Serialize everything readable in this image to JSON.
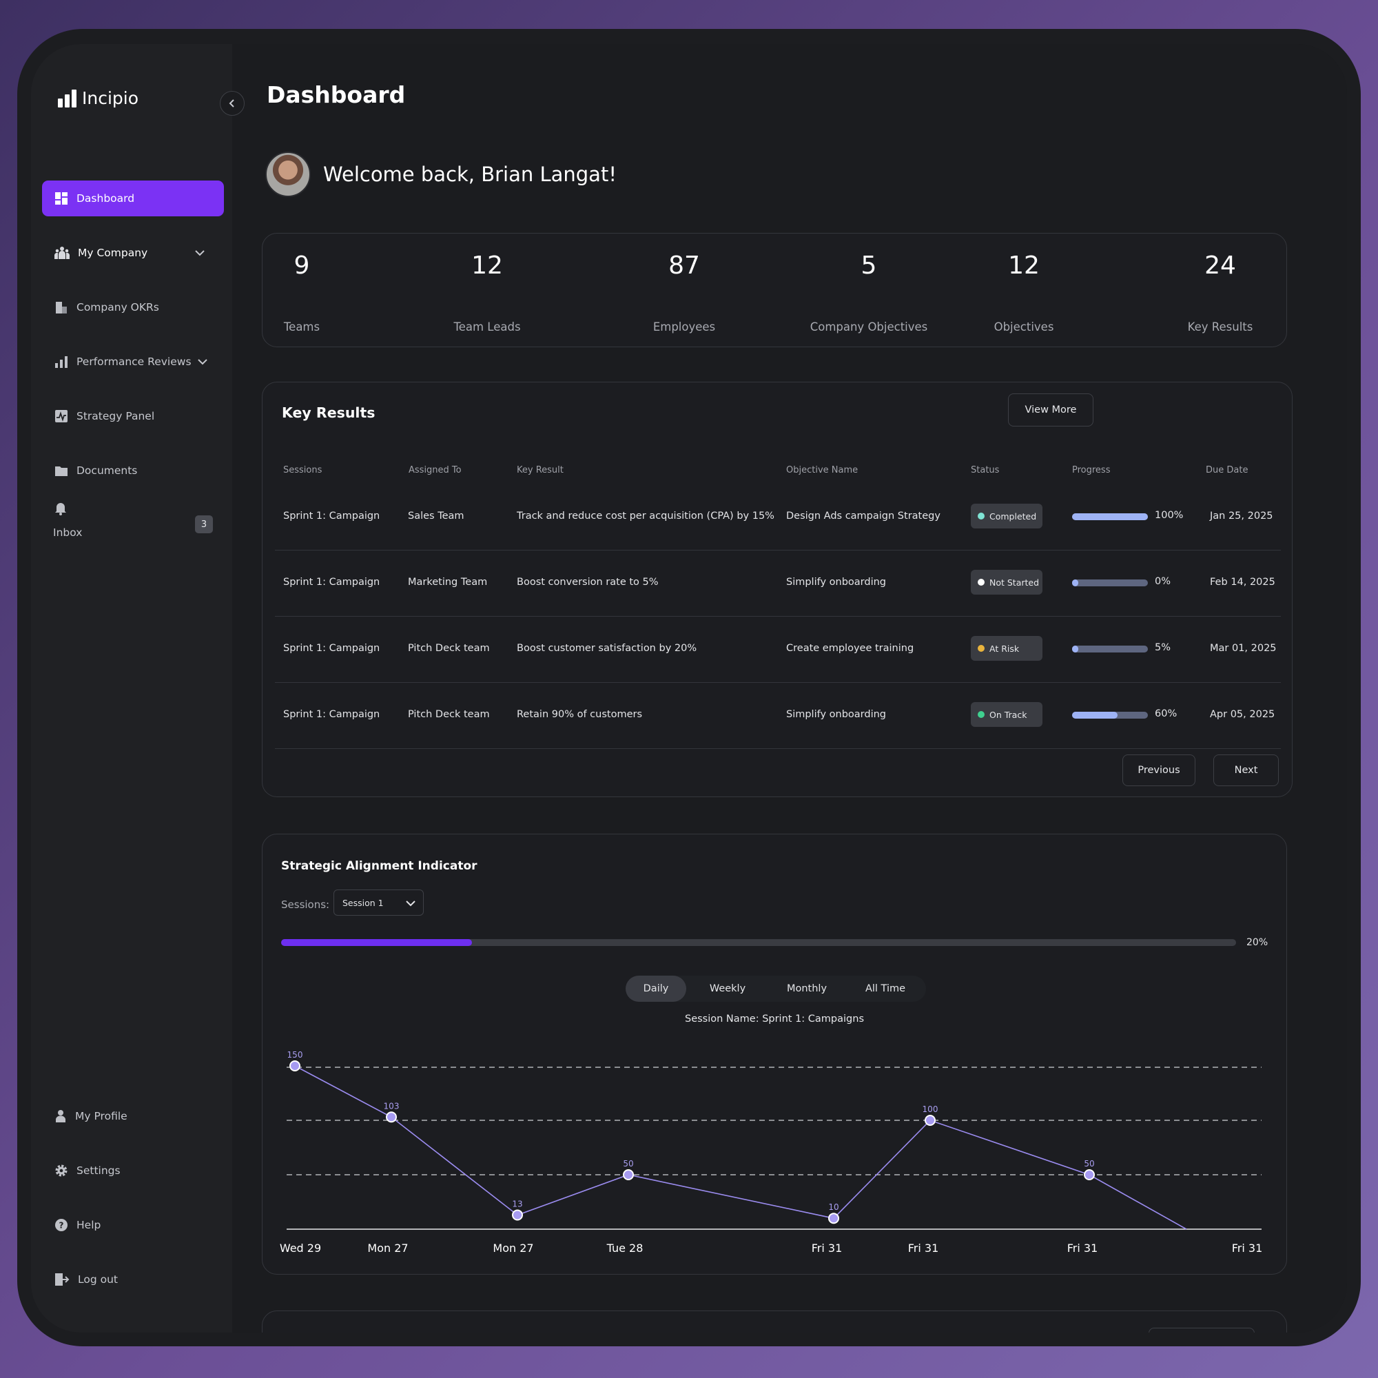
{
  "app": {
    "name": "Incipio"
  },
  "sidebar": {
    "items": [
      {
        "label": "Dashboard",
        "icon": "dashboard-icon",
        "active": true
      },
      {
        "label": "My Company",
        "icon": "people-icon"
      },
      {
        "label": "Company OKRs",
        "icon": "building-icon"
      },
      {
        "label": "Performance Reviews",
        "icon": "bar-chart-icon"
      },
      {
        "label": "Strategy Panel",
        "icon": "activity-icon"
      },
      {
        "label": "Documents",
        "icon": "folder-icon"
      }
    ],
    "inbox": {
      "label": "Inbox",
      "count": "3"
    },
    "bottom": [
      {
        "label": "My Profile",
        "icon": "user-icon"
      },
      {
        "label": "Settings",
        "icon": "gear-icon"
      },
      {
        "label": "Help",
        "icon": "help-icon"
      },
      {
        "label": "Log out",
        "icon": "logout-icon"
      }
    ]
  },
  "header": {
    "title": "Dashboard",
    "welcome": "Welcome back, Brian Langat!"
  },
  "stats": [
    {
      "value": "9",
      "label": "Teams"
    },
    {
      "value": "12",
      "label": "Team Leads"
    },
    {
      "value": "87",
      "label": "Employees"
    },
    {
      "value": "5",
      "label": "Company Objectives"
    },
    {
      "value": "12",
      "label": "Objectives"
    },
    {
      "value": "24",
      "label": "Key Results"
    }
  ],
  "key_results": {
    "title": "Key Results",
    "view_more": "View More",
    "columns": [
      "Sessions",
      "Assigned To",
      "Key Result",
      "Objective Name",
      "Status",
      "Progress",
      "Due Date"
    ],
    "rows": [
      {
        "session": "Sprint 1: Campaign",
        "assigned": "Sales Team",
        "key_result": "Track and reduce cost per acquisition (CPA) by 15%",
        "objective": "Design Ads campaign Strategy",
        "status": "Completed",
        "status_color": "#7fe3d4",
        "progress": 100,
        "progress_label": "100%",
        "due": "Jan 25, 2025"
      },
      {
        "session": "Sprint 1: Campaign",
        "assigned": "Marketing Team",
        "key_result": "Boost conversion rate to 5%",
        "objective": "Simplify onboarding",
        "status": "Not Started",
        "status_color": "#ffffff",
        "progress": 0,
        "progress_label": "0%",
        "due": "Feb 14, 2025"
      },
      {
        "session": "Sprint 1: Campaign",
        "assigned": "Pitch Deck team",
        "key_result": "Boost customer satisfaction by 20%",
        "objective": "Create employee training",
        "status": "At Risk",
        "status_color": "#e9b43d",
        "progress": 5,
        "progress_label": "5%",
        "due": "Mar 01, 2025"
      },
      {
        "session": "Sprint 1: Campaign",
        "assigned": "Pitch Deck team",
        "key_result": "Retain 90% of customers",
        "objective": "Simplify onboarding",
        "status": "On Track",
        "status_color": "#3fd08f",
        "progress": 60,
        "progress_label": "60%",
        "due": "Apr 05, 2025"
      }
    ],
    "previous": "Previous",
    "next": "Next"
  },
  "strategic": {
    "title": "Strategic Alignment Indicator",
    "sessions_label": "Sessions:",
    "session_value": "Session 1",
    "progress": 20,
    "progress_label": "20%",
    "tabs": [
      "Daily",
      "Weekly",
      "Monthly",
      "All Time"
    ],
    "active_tab": "Daily",
    "session_name": "Session Name: Sprint 1: Campaigns"
  },
  "chart_data": {
    "type": "line",
    "title": "Session Name: Sprint 1: Campaigns",
    "categories": [
      "Wed 29",
      "Mon 27",
      "Mon 27",
      "Tue 28",
      "Fri 31",
      "Fri 31",
      "Fri 31",
      "Fri 31"
    ],
    "values": [
      150,
      103,
      13,
      50,
      10,
      100,
      50,
      0
    ],
    "point_labels": [
      "150",
      "103",
      "13",
      "50",
      "10",
      "100",
      "50",
      ""
    ],
    "ylim": [
      0,
      150
    ],
    "grid": true,
    "xlabel": "",
    "ylabel": "",
    "color": "#9b8cf0"
  },
  "colors": {
    "accent": "#7b32f4",
    "progress": "#9eb3f5"
  }
}
